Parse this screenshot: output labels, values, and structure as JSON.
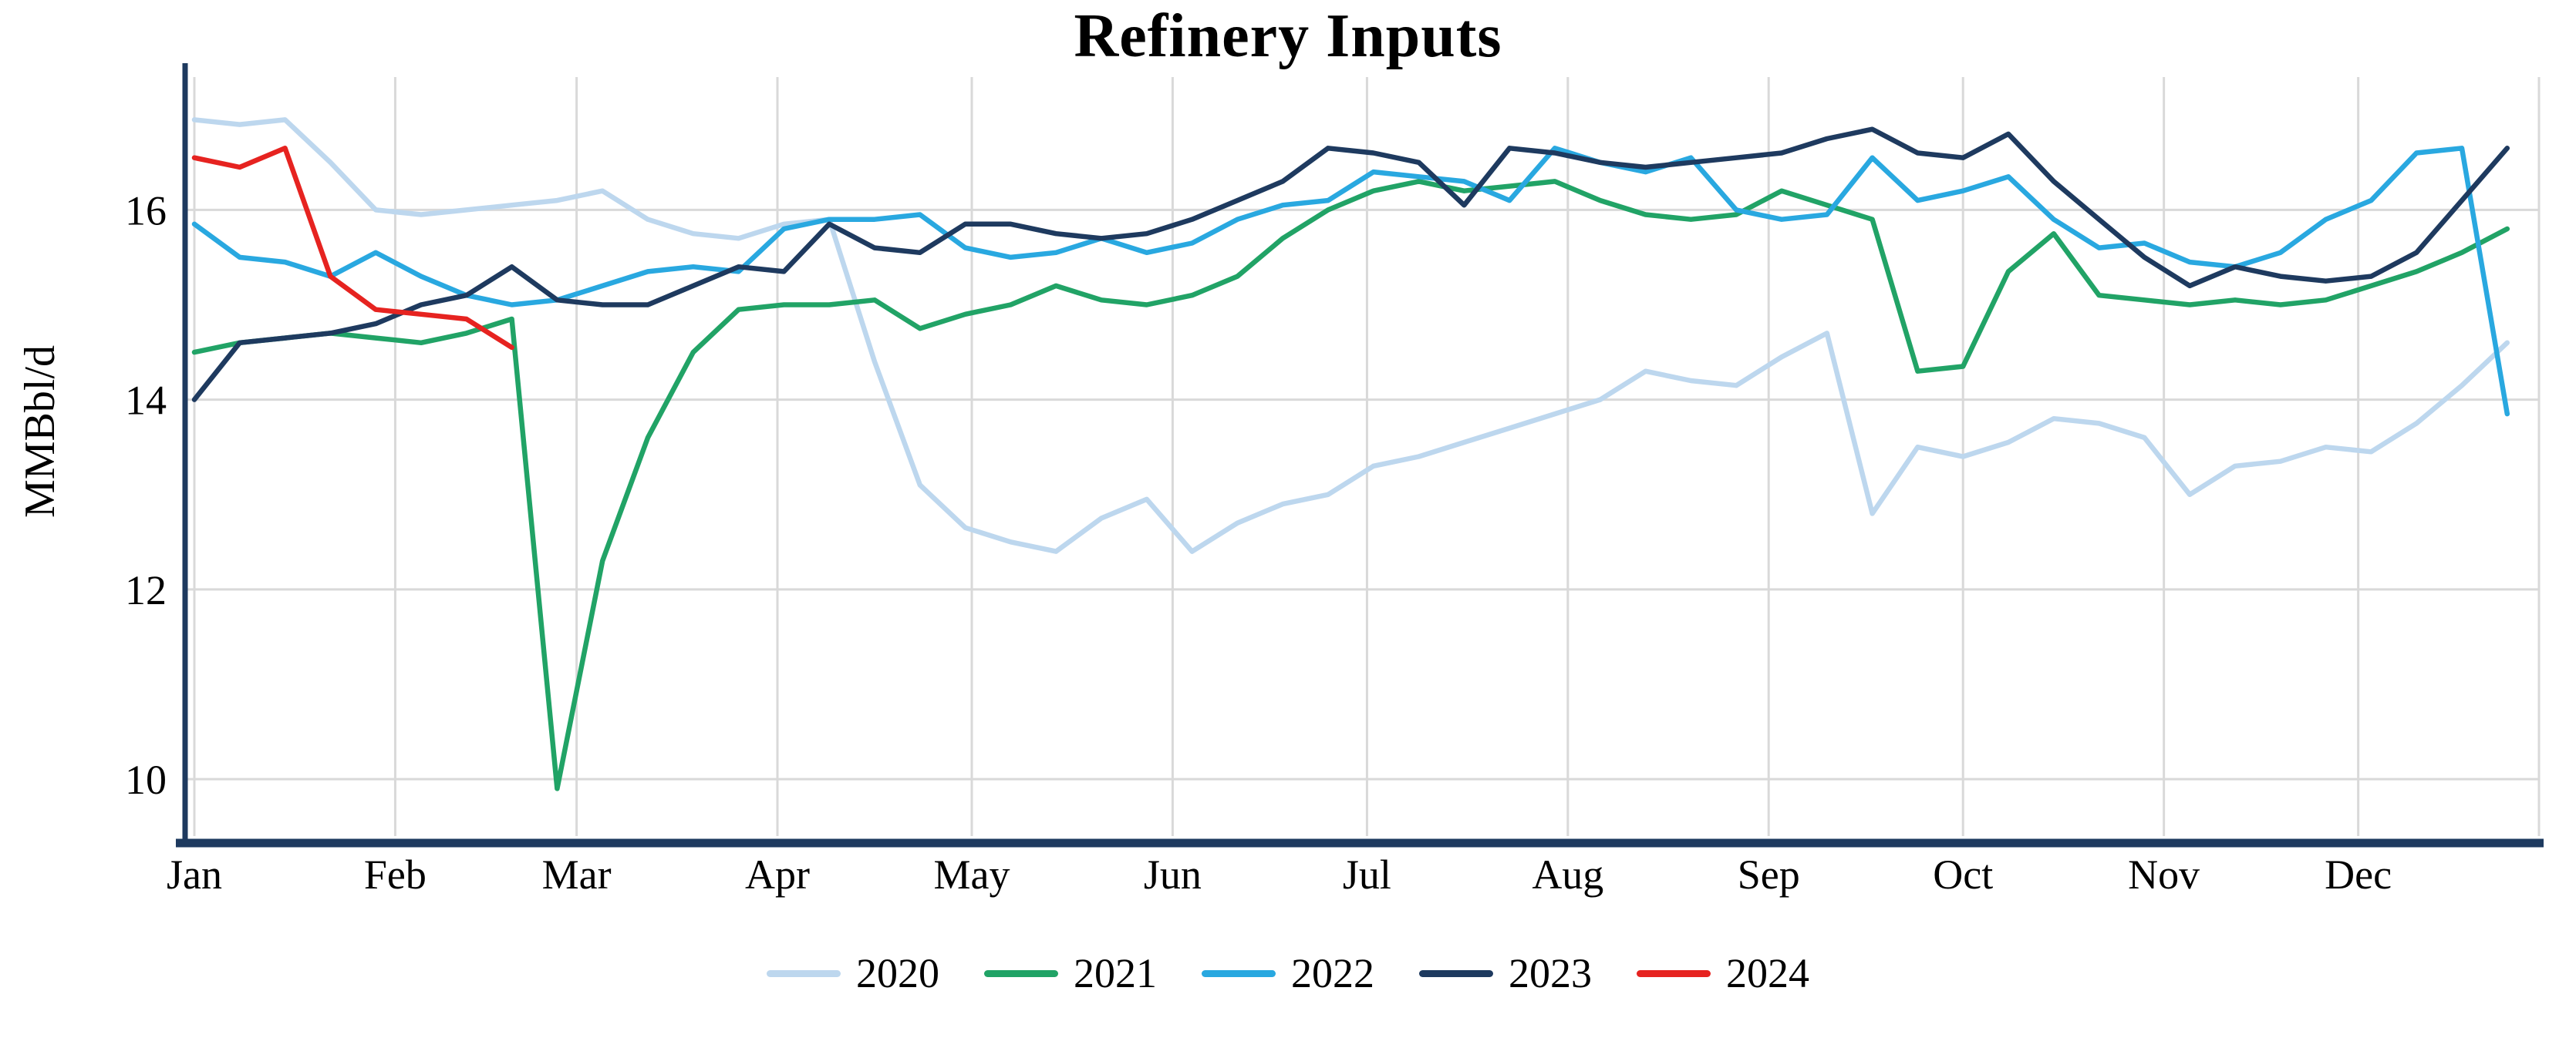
{
  "chart_data": {
    "type": "line",
    "title": "Refinery Inputs",
    "xlabel": "",
    "ylabel": "MMBbl/d",
    "x_unit": "week of year",
    "x_tick_labels": [
      "Jan",
      "Feb",
      "Mar",
      "Apr",
      "May",
      "Jun",
      "Jul",
      "Aug",
      "Sep",
      "Oct",
      "Nov",
      "Dec"
    ],
    "y_ticks": [
      10,
      12,
      14,
      16
    ],
    "ylim": [
      9.4,
      17.4
    ],
    "grid": true,
    "legend_position": "bottom-center",
    "series": [
      {
        "name": "2020",
        "color": "#bdd7ee",
        "values": [
          16.95,
          16.9,
          16.95,
          16.5,
          16.0,
          15.95,
          16.0,
          16.05,
          16.1,
          16.2,
          15.9,
          15.75,
          15.7,
          15.85,
          15.9,
          14.4,
          13.1,
          12.65,
          12.5,
          12.4,
          12.75,
          12.95,
          12.4,
          12.7,
          12.9,
          13.0,
          13.3,
          13.4,
          13.55,
          13.7,
          13.85,
          14.0,
          14.3,
          14.2,
          14.15,
          14.45,
          14.7,
          12.8,
          13.5,
          13.4,
          13.55,
          13.8,
          13.75,
          13.6,
          13.0,
          13.3,
          13.35,
          13.5,
          13.45,
          13.75,
          14.15,
          14.6
        ]
      },
      {
        "name": "2021",
        "color": "#21a366",
        "values": [
          14.5,
          14.6,
          14.65,
          14.7,
          14.65,
          14.6,
          14.7,
          14.85,
          9.9,
          12.3,
          13.6,
          14.5,
          14.95,
          15.0,
          15.0,
          15.05,
          14.75,
          14.9,
          15.0,
          15.2,
          15.05,
          15.0,
          15.1,
          15.3,
          15.7,
          16.0,
          16.2,
          16.3,
          16.2,
          16.25,
          16.3,
          16.1,
          15.95,
          15.9,
          15.95,
          16.2,
          16.05,
          15.9,
          14.3,
          14.35,
          15.35,
          15.75,
          15.1,
          15.05,
          15.0,
          15.05,
          15.0,
          15.05,
          15.2,
          15.35,
          15.55,
          15.8
        ]
      },
      {
        "name": "2022",
        "color": "#29a8e0",
        "values": [
          15.85,
          15.5,
          15.45,
          15.3,
          15.55,
          15.3,
          15.1,
          15.0,
          15.05,
          15.2,
          15.35,
          15.4,
          15.35,
          15.8,
          15.9,
          15.9,
          15.95,
          15.6,
          15.5,
          15.55,
          15.7,
          15.55,
          15.65,
          15.9,
          16.05,
          16.1,
          16.4,
          16.35,
          16.3,
          16.1,
          16.65,
          16.5,
          16.4,
          16.55,
          16.0,
          15.9,
          15.95,
          16.55,
          16.1,
          16.2,
          16.35,
          15.9,
          15.6,
          15.65,
          15.45,
          15.4,
          15.55,
          15.9,
          16.1,
          16.6,
          16.65,
          13.85
        ]
      },
      {
        "name": "2023",
        "color": "#1e3a5f",
        "values": [
          14.0,
          14.6,
          14.65,
          14.7,
          14.8,
          15.0,
          15.1,
          15.4,
          15.05,
          15.0,
          15.0,
          15.2,
          15.4,
          15.35,
          15.85,
          15.6,
          15.55,
          15.85,
          15.85,
          15.75,
          15.7,
          15.75,
          15.9,
          16.1,
          16.3,
          16.65,
          16.6,
          16.5,
          16.05,
          16.65,
          16.6,
          16.5,
          16.45,
          16.5,
          16.55,
          16.6,
          16.75,
          16.85,
          16.6,
          16.55,
          16.8,
          16.3,
          15.9,
          15.5,
          15.2,
          15.4,
          15.3,
          15.25,
          15.3,
          15.55,
          16.1,
          16.65
        ]
      },
      {
        "name": "2024",
        "color": "#e62320",
        "values": [
          16.55,
          16.45,
          16.65,
          15.3,
          14.95,
          14.9,
          14.85,
          14.55
        ]
      }
    ]
  },
  "style": {
    "axis_color": "#1e3a5f",
    "grid_color": "#d9d9d9",
    "text_color": "#000000",
    "background": "#ffffff"
  }
}
